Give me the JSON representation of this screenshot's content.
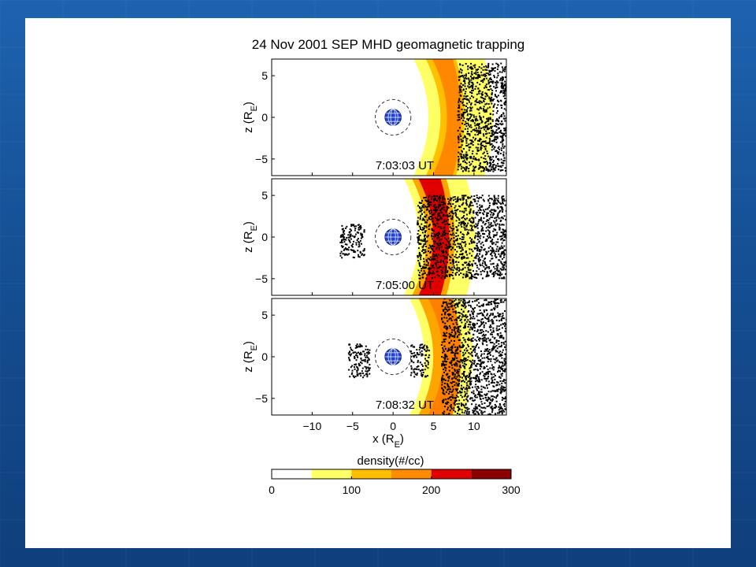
{
  "chart_data": {
    "type": "scatter",
    "title": "24 Nov 2001 SEP MHD geomagnetic trapping",
    "xlabel": "x (R",
    "xlabel_sub": "E",
    "xlabel_end": ")",
    "ylabel": "z (R",
    "ylabel_sub": "E",
    "ylabel_end": ")",
    "xlim": [
      -15,
      14
    ],
    "ylim": [
      -7,
      7
    ],
    "x_ticks": [
      {
        "v": -10,
        "label": "−10"
      },
      {
        "v": -5,
        "label": "−5"
      },
      {
        "v": 0,
        "label": "0"
      },
      {
        "v": 5,
        "label": "5"
      },
      {
        "v": 10,
        "label": "10"
      }
    ],
    "y_ticks": [
      {
        "v": 5,
        "label": "5"
      },
      {
        "v": 0,
        "label": "0"
      },
      {
        "v": -5,
        "label": "−5"
      }
    ],
    "earth_radius": 1,
    "dashed_circle_radius": 2.2,
    "panels": [
      {
        "time": "7:03:03 UT",
        "density_bands": [
          {
            "x0": 3.0,
            "width": 7.0,
            "color": "#ffff66"
          },
          {
            "x0": 4.5,
            "width": 2.0,
            "color": "#ffc000"
          },
          {
            "x0": 5.3,
            "width": 0.8,
            "color": "#ff8800"
          }
        ],
        "particle_clouds": [
          {
            "x": [
              8,
              14
            ],
            "z": [
              -6.5,
              6.5
            ]
          }
        ]
      },
      {
        "time": "7:05:00 UT",
        "density_bands": [
          {
            "x0": 1.8,
            "width": 6.0,
            "color": "#ffff66"
          },
          {
            "x0": 2.8,
            "width": 2.5,
            "color": "#ffa500"
          },
          {
            "x0": 3.6,
            "width": 1.0,
            "color": "#e00000"
          }
        ],
        "particle_clouds": [
          {
            "x": [
              -6.5,
              -3.5
            ],
            "z": [
              -2.5,
              1.5
            ]
          },
          {
            "x": [
              3,
              14
            ],
            "z": [
              -5,
              5
            ]
          }
        ]
      },
      {
        "time": "7:08:32 UT",
        "density_bands": [
          {
            "x0": 2.5,
            "width": 5.0,
            "color": "#ffff66"
          },
          {
            "x0": 3.6,
            "width": 2.5,
            "color": "#ffa500"
          },
          {
            "x0": 4.8,
            "width": 1.2,
            "color": "#ff7f00"
          }
        ],
        "particle_clouds": [
          {
            "x": [
              -5.5,
              -2.8
            ],
            "z": [
              -2.5,
              1.5
            ]
          },
          {
            "x": [
              2.2,
              4.5
            ],
            "z": [
              -2.5,
              1.5
            ]
          },
          {
            "x": [
              6,
              14
            ],
            "z": [
              -7,
              7
            ]
          }
        ]
      }
    ],
    "colorbar": {
      "label": "density(#/cc)",
      "min": 0,
      "max": 300,
      "ticks": [
        {
          "v": 0,
          "label": "0"
        },
        {
          "v": 100,
          "label": "100"
        },
        {
          "v": 200,
          "label": "200"
        },
        {
          "v": 300,
          "label": "300"
        }
      ],
      "bins": [
        {
          "from": 0,
          "to": 50,
          "color": "#ffffff"
        },
        {
          "from": 50,
          "to": 100,
          "color": "#ffff66"
        },
        {
          "from": 100,
          "to": 150,
          "color": "#ffbf00"
        },
        {
          "from": 150,
          "to": 200,
          "color": "#ff8c00"
        },
        {
          "from": 200,
          "to": 250,
          "color": "#e00000"
        },
        {
          "from": 250,
          "to": 300,
          "color": "#8b0000"
        }
      ]
    },
    "colors": {
      "earth": "#1e3fd8",
      "particles": "#000000",
      "background": "#1a5aa8"
    }
  }
}
